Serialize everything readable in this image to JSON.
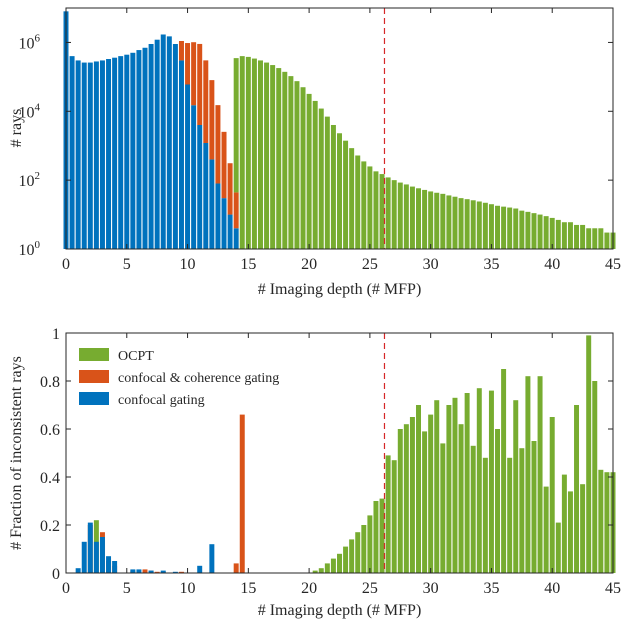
{
  "colors": {
    "ocpt": "#77AC30",
    "coherence": "#D95319",
    "confocal": "#0072BD",
    "threshold": "#D62728",
    "axis": "#262626"
  },
  "threshold_depth": 26.2,
  "chart_data": [
    {
      "type": "bar",
      "stacked": true,
      "xlabel": "# Imaging depth (# MFP)",
      "ylabel": "# rays",
      "xlim": [
        0,
        45
      ],
      "ylim": [
        1,
        10000000
      ],
      "yscale": "log",
      "xticks": [
        "0",
        "5",
        "10",
        "15",
        "20",
        "25",
        "30",
        "35",
        "40",
        "45"
      ],
      "yticks": [
        {
          "value": 1,
          "base": "10",
          "exp": "0"
        },
        {
          "value": 100,
          "base": "10",
          "exp": "2"
        },
        {
          "value": 10000,
          "base": "10",
          "exp": "4"
        },
        {
          "value": 1000000,
          "base": "10",
          "exp": "6"
        }
      ],
      "bin_width": 0.5,
      "series": [
        {
          "name": "confocal gating",
          "color": "#0072BD",
          "x": [
            0,
            0.5,
            1,
            1.5,
            2,
            2.5,
            3,
            3.5,
            4,
            4.5,
            5,
            5.5,
            6,
            6.5,
            7,
            7.5,
            8,
            8.5,
            9,
            9.5,
            10,
            10.5,
            11,
            11.5,
            12,
            12.5,
            13,
            13.5,
            14
          ],
          "values": [
            8000000,
            400000,
            300000,
            260000,
            260000,
            280000,
            300000,
            330000,
            360000,
            400000,
            440000,
            500000,
            600000,
            700000,
            900000,
            1200000,
            1700000,
            1500000,
            900000,
            300000,
            60000,
            15000,
            4000,
            1200,
            400,
            80,
            30,
            10,
            4
          ]
        },
        {
          "name": "confocal & coherence gating",
          "color": "#D95319",
          "x": [
            9.5,
            10,
            10.5,
            11,
            11.5,
            12,
            12.5,
            13,
            13.5,
            14
          ],
          "values": [
            800000,
            900000,
            1000000,
            900000,
            300000,
            80000,
            15000,
            2500,
            300,
            40
          ]
        },
        {
          "name": "OCPT",
          "color": "#77AC30",
          "x": [
            14,
            14.5,
            15,
            15.5,
            16,
            16.5,
            17,
            17.5,
            18,
            18.5,
            19,
            19.5,
            20,
            20.5,
            21,
            21.5,
            22,
            22.5,
            23,
            23.5,
            24,
            24.5,
            25,
            25.5,
            26,
            26.5,
            27,
            27.5,
            28,
            28.5,
            29,
            29.5,
            30,
            30.5,
            31,
            31.5,
            32,
            32.5,
            33,
            33.5,
            34,
            34.5,
            35,
            35.5,
            36,
            36.5,
            37,
            37.5,
            38,
            38.5,
            39,
            39.5,
            40,
            40.5,
            41,
            41.5,
            42,
            42.5,
            43,
            43.5,
            44,
            44.5,
            45
          ],
          "values": [
            350000,
            400000,
            380000,
            340000,
            300000,
            260000,
            220000,
            180000,
            140000,
            105000,
            75000,
            50000,
            32000,
            20000,
            12000,
            7000,
            4000,
            2300,
            1400,
            850,
            520,
            350,
            250,
            180,
            150,
            120,
            100,
            85,
            75,
            65,
            58,
            52,
            47,
            43,
            40,
            36,
            33,
            30,
            28,
            26,
            24,
            22,
            20,
            18,
            17,
            16,
            15,
            13,
            12,
            11,
            10,
            9,
            8,
            7,
            6,
            6,
            5,
            5,
            4,
            4,
            4,
            3,
            3
          ]
        }
      ]
    },
    {
      "type": "bar",
      "xlabel": "# Imaging depth (# MFP)",
      "ylabel": "# Fraction of inconsistent rays",
      "xlim": [
        0,
        45
      ],
      "ylim": [
        0,
        1
      ],
      "xticks": [
        "0",
        "5",
        "10",
        "15",
        "20",
        "25",
        "30",
        "35",
        "40",
        "45"
      ],
      "yticks": [
        "0",
        "0.2",
        "0.4",
        "0.6",
        "0.8",
        "1"
      ],
      "bin_width": 0.5,
      "legend_position": "top-left",
      "series": [
        {
          "name": "OCPT",
          "color": "#77AC30",
          "x": [
            2.5,
            20.5,
            21,
            21.5,
            22,
            22.5,
            23,
            23.5,
            24,
            24.5,
            25,
            25.5,
            26,
            26.5,
            27,
            27.5,
            28,
            28.5,
            29,
            29.5,
            30,
            30.5,
            31,
            31.5,
            32,
            32.5,
            33,
            33.5,
            34,
            34.5,
            35,
            35.5,
            36,
            36.5,
            37,
            37.5,
            38,
            38.5,
            39,
            39.5,
            40,
            40.5,
            41,
            41.5,
            42,
            42.5,
            43,
            43.5,
            44,
            44.5,
            45
          ],
          "values": [
            0.22,
            0.01,
            0.02,
            0.04,
            0.06,
            0.08,
            0.11,
            0.14,
            0.17,
            0.2,
            0.24,
            0.3,
            0.31,
            0.49,
            0.47,
            0.6,
            0.62,
            0.65,
            0.7,
            0.59,
            0.66,
            0.72,
            0.54,
            0.7,
            0.73,
            0.62,
            0.75,
            0.53,
            0.77,
            0.48,
            0.76,
            0.6,
            0.85,
            0.48,
            0.72,
            0.52,
            0.82,
            0.55,
            0.82,
            0.36,
            0.65,
            0.21,
            0.41,
            0.34,
            0.7,
            0.37,
            0.99,
            0.8,
            0.43,
            0.42,
            0.42
          ]
        },
        {
          "name": "confocal & coherence gating",
          "color": "#D95319",
          "x": [
            2,
            3,
            3.5,
            4,
            5.5,
            6.5,
            7,
            7.5,
            8,
            9.5,
            14,
            14.5
          ],
          "values": [
            0.2,
            0.17,
            0.05,
            0.03,
            0.01,
            0.015,
            0.01,
            0.005,
            0.005,
            0.005,
            0.04,
            0.66
          ]
        },
        {
          "name": "confocal gating",
          "color": "#0072BD",
          "x": [
            1,
            1.5,
            2,
            2.5,
            3,
            3.5,
            4,
            5.5,
            6,
            7,
            8,
            9,
            11,
            12
          ],
          "values": [
            0.02,
            0.13,
            0.21,
            0.13,
            0.15,
            0.07,
            0.05,
            0.015,
            0.015,
            0.01,
            0.01,
            0.005,
            0.03,
            0.12
          ]
        }
      ]
    }
  ]
}
